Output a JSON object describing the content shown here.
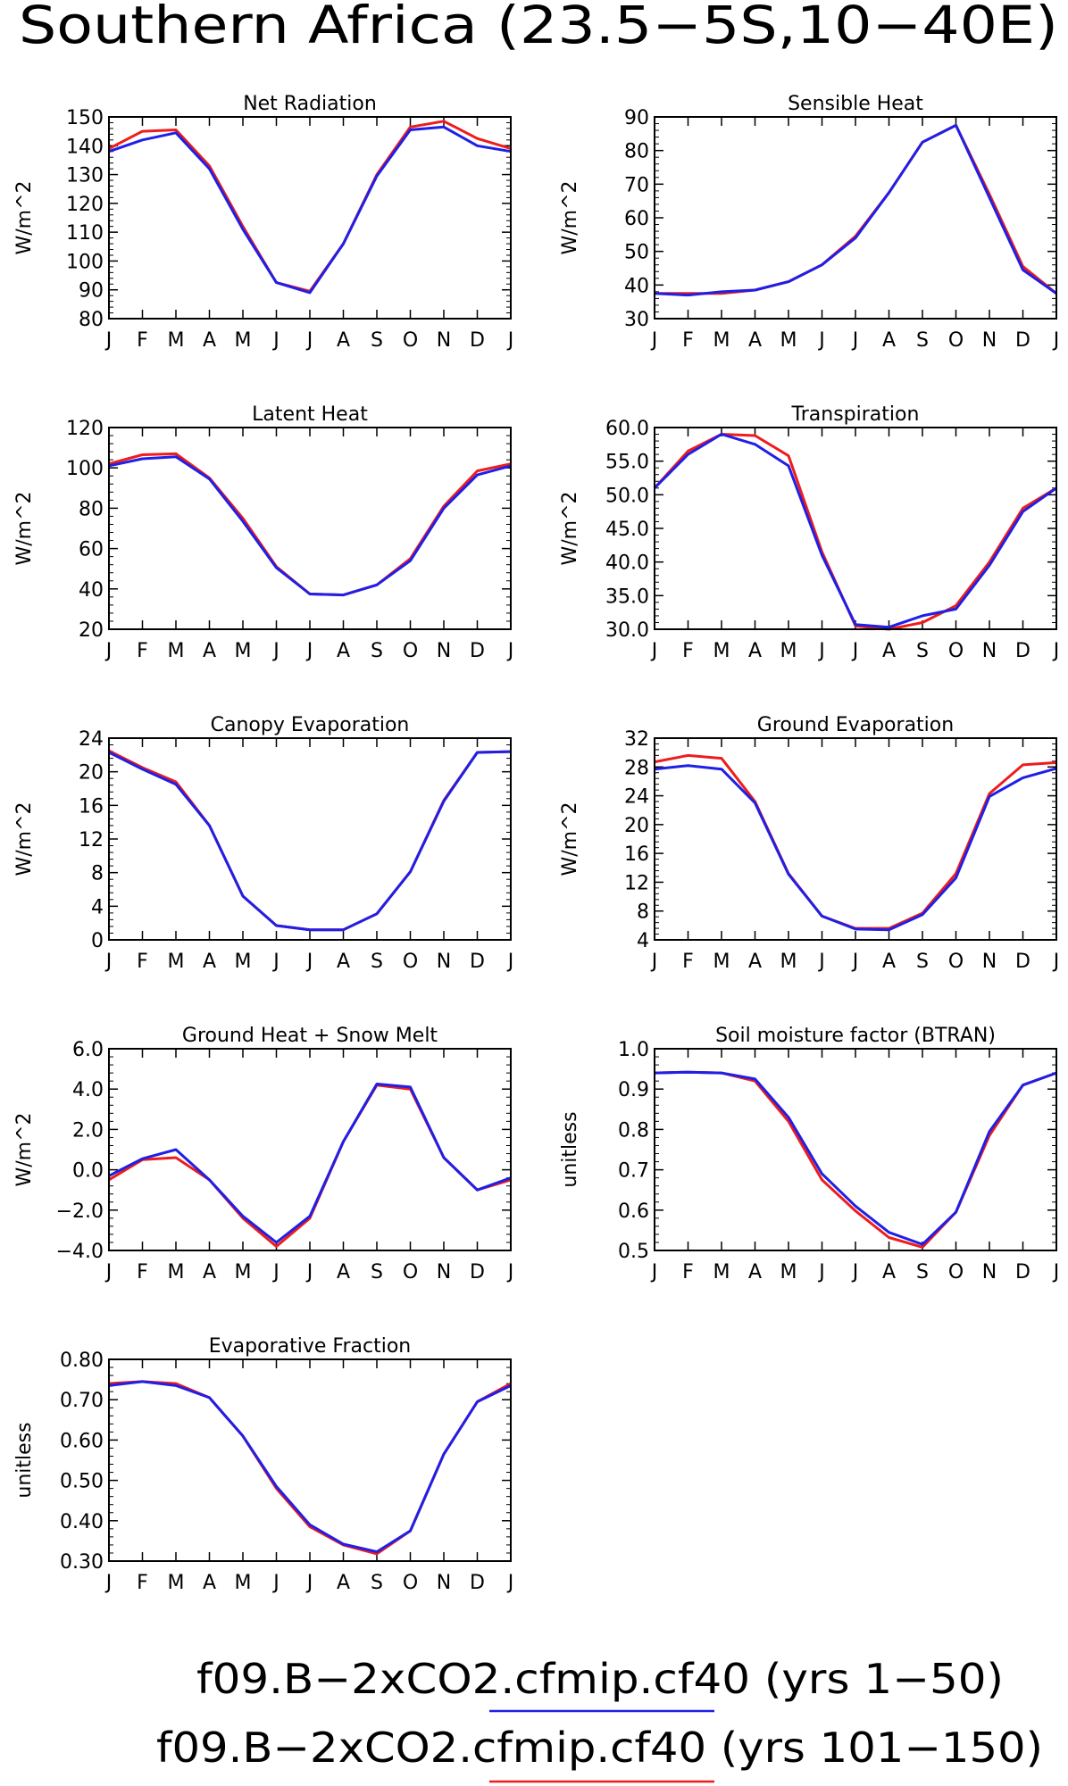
{
  "page": {
    "title": "Southern Africa (23.5−5S,10−40E)",
    "legend": [
      {
        "label": "f09.B−2xCO2.cfmip.cf40 (yrs 1−50)",
        "color": "#1f1fe6"
      },
      {
        "label": "f09.B−2xCO2.cfmip.cf40 (yrs 101−150)",
        "color": "#ee1c1c"
      }
    ]
  },
  "colors": {
    "blue": "#1f1fe6",
    "red": "#ee1c1c"
  },
  "chart_data": [
    {
      "type": "line",
      "title": "Net Radiation",
      "ylabel": "W/m^2",
      "categories": [
        "J",
        "F",
        "M",
        "A",
        "M",
        "J",
        "J",
        "A",
        "S",
        "O",
        "N",
        "D",
        "J"
      ],
      "ylim": [
        80,
        150
      ],
      "yticks": [
        80,
        90,
        100,
        110,
        120,
        130,
        140,
        150
      ],
      "ytick_labels": [
        "80",
        "90",
        "100",
        "110",
        "120",
        "130",
        "140",
        "150"
      ],
      "series": [
        {
          "color": "red",
          "values": [
            139,
            145,
            145.5,
            133,
            112,
            92.5,
            89.5,
            106,
            130,
            146.5,
            148.5,
            142.5,
            139
          ]
        },
        {
          "color": "blue",
          "values": [
            138,
            142,
            144.5,
            132,
            111,
            92.5,
            89,
            106,
            129.5,
            145.5,
            146.5,
            140,
            138
          ]
        }
      ]
    },
    {
      "type": "line",
      "title": "Sensible Heat",
      "ylabel": "W/m^2",
      "categories": [
        "J",
        "F",
        "M",
        "A",
        "M",
        "J",
        "J",
        "A",
        "S",
        "O",
        "N",
        "D",
        "J"
      ],
      "ylim": [
        30,
        90
      ],
      "yticks": [
        30,
        40,
        50,
        60,
        70,
        80,
        90
      ],
      "ytick_labels": [
        "30",
        "40",
        "50",
        "60",
        "70",
        "80",
        "90"
      ],
      "series": [
        {
          "color": "red",
          "values": [
            37.5,
            37.5,
            37.5,
            38.5,
            41,
            46,
            54.5,
            67.5,
            82.5,
            87.5,
            67,
            45.5,
            37.5
          ]
        },
        {
          "color": "blue",
          "values": [
            37.5,
            37,
            38,
            38.5,
            41,
            46,
            54,
            67.5,
            82.5,
            87.5,
            66,
            44.5,
            37.5
          ]
        }
      ]
    },
    {
      "type": "line",
      "title": "Latent Heat",
      "ylabel": "W/m^2",
      "categories": [
        "J",
        "F",
        "M",
        "A",
        "M",
        "J",
        "J",
        "A",
        "S",
        "O",
        "N",
        "D",
        "J"
      ],
      "ylim": [
        20,
        120
      ],
      "yticks": [
        20,
        40,
        60,
        80,
        100,
        120
      ],
      "ytick_labels": [
        "20",
        "40",
        "60",
        "80",
        "100",
        "120"
      ],
      "series": [
        {
          "color": "red",
          "values": [
            102,
            106.5,
            107,
            95,
            75,
            51,
            37.5,
            37,
            42,
            55,
            81,
            98.5,
            102
          ]
        },
        {
          "color": "blue",
          "values": [
            101,
            104.5,
            105.5,
            94.5,
            73.5,
            50.5,
            37.5,
            37,
            42,
            54,
            80,
            96.5,
            101
          ]
        }
      ]
    },
    {
      "type": "line",
      "title": "Transpiration",
      "ylabel": "W/m^2",
      "categories": [
        "J",
        "F",
        "M",
        "A",
        "M",
        "J",
        "J",
        "A",
        "S",
        "O",
        "N",
        "D",
        "J"
      ],
      "ylim": [
        30,
        60
      ],
      "yticks": [
        30,
        35,
        40,
        45,
        50,
        55,
        60
      ],
      "ytick_labels": [
        "30.0",
        "35.0",
        "40.0",
        "45.0",
        "50.0",
        "55.0",
        "60.0"
      ],
      "series": [
        {
          "color": "red",
          "values": [
            51,
            56.5,
            59,
            58.8,
            55.8,
            41.5,
            30.5,
            30,
            31,
            33.5,
            40,
            48,
            51
          ]
        },
        {
          "color": "blue",
          "values": [
            51,
            56,
            59,
            57.5,
            54.3,
            41,
            30.7,
            30.3,
            32,
            33,
            39.5,
            47.5,
            51
          ]
        }
      ]
    },
    {
      "type": "line",
      "title": "Canopy Evaporation",
      "ylabel": "W/m^2",
      "categories": [
        "J",
        "F",
        "M",
        "A",
        "M",
        "J",
        "J",
        "A",
        "S",
        "O",
        "N",
        "D",
        "J"
      ],
      "ylim": [
        0,
        24
      ],
      "yticks": [
        0,
        4,
        8,
        12,
        16,
        20,
        24
      ],
      "ytick_labels": [
        "0",
        "4",
        "8",
        "12",
        "16",
        "20",
        "24"
      ],
      "series": [
        {
          "color": "red",
          "values": [
            22.5,
            20.5,
            18.8,
            13.6,
            5.2,
            1.7,
            1.2,
            1.2,
            3.1,
            8.1,
            16.6,
            22.3,
            22.4
          ]
        },
        {
          "color": "blue",
          "values": [
            22.3,
            20.3,
            18.5,
            13.6,
            5.2,
            1.7,
            1.2,
            1.2,
            3.1,
            8.1,
            16.5,
            22.3,
            22.4
          ]
        }
      ]
    },
    {
      "type": "line",
      "title": "Ground Evaporation",
      "ylabel": "W/m^2",
      "categories": [
        "J",
        "F",
        "M",
        "A",
        "M",
        "J",
        "J",
        "A",
        "S",
        "O",
        "N",
        "D",
        "J"
      ],
      "ylim": [
        4,
        32
      ],
      "yticks": [
        4,
        8,
        12,
        16,
        20,
        24,
        28,
        32
      ],
      "ytick_labels": [
        "4",
        "8",
        "12",
        "16",
        "20",
        "24",
        "28",
        "32"
      ],
      "series": [
        {
          "color": "red",
          "values": [
            28.7,
            29.6,
            29.2,
            23.2,
            13.2,
            7.3,
            5.6,
            5.6,
            7.7,
            13.2,
            24.3,
            28.3,
            28.6
          ]
        },
        {
          "color": "blue",
          "values": [
            27.7,
            28.2,
            27.7,
            23,
            13.1,
            7.3,
            5.5,
            5.4,
            7.5,
            12.6,
            23.9,
            26.5,
            27.8
          ]
        }
      ]
    },
    {
      "type": "line",
      "title": "Ground Heat + Snow Melt",
      "ylabel": "W/m^2",
      "categories": [
        "J",
        "F",
        "M",
        "A",
        "M",
        "J",
        "J",
        "A",
        "S",
        "O",
        "N",
        "D",
        "J"
      ],
      "ylim": [
        -4,
        6
      ],
      "yticks": [
        -4,
        -2,
        0,
        2,
        4,
        6
      ],
      "ytick_labels": [
        "−4.0",
        "−2.0",
        "0.0",
        "2.0",
        "4.0",
        "6.0"
      ],
      "series": [
        {
          "color": "red",
          "values": [
            -0.5,
            0.5,
            0.6,
            -0.5,
            -2.4,
            -3.8,
            -2.4,
            1.4,
            4.2,
            4.0,
            0.6,
            -1.0,
            -0.5
          ]
        },
        {
          "color": "blue",
          "values": [
            -0.3,
            0.55,
            1.0,
            -0.5,
            -2.3,
            -3.6,
            -2.3,
            1.4,
            4.25,
            4.1,
            0.6,
            -1.0,
            -0.4
          ]
        }
      ]
    },
    {
      "type": "line",
      "title": "Soil moisture factor (BTRAN)",
      "ylabel": "unitless",
      "categories": [
        "J",
        "F",
        "M",
        "A",
        "M",
        "J",
        "J",
        "A",
        "S",
        "O",
        "N",
        "D",
        "J"
      ],
      "ylim": [
        0.5,
        1.0
      ],
      "yticks": [
        0.5,
        0.6,
        0.7,
        0.8,
        0.9,
        1.0
      ],
      "ytick_labels": [
        "0.5",
        "0.6",
        "0.7",
        "0.8",
        "0.9",
        "1.0"
      ],
      "series": [
        {
          "color": "red",
          "values": [
            0.94,
            0.942,
            0.94,
            0.92,
            0.82,
            0.675,
            0.598,
            0.532,
            0.508,
            0.595,
            0.785,
            0.91,
            0.94
          ]
        },
        {
          "color": "blue",
          "values": [
            0.94,
            0.942,
            0.94,
            0.925,
            0.83,
            0.69,
            0.61,
            0.545,
            0.515,
            0.595,
            0.795,
            0.91,
            0.94
          ]
        }
      ]
    },
    {
      "type": "line",
      "title": "Evaporative Fraction",
      "ylabel": "unitless",
      "categories": [
        "J",
        "F",
        "M",
        "A",
        "M",
        "J",
        "J",
        "A",
        "S",
        "O",
        "N",
        "D",
        "J"
      ],
      "ylim": [
        0.3,
        0.8
      ],
      "yticks": [
        0.3,
        0.4,
        0.5,
        0.6,
        0.7,
        0.8
      ],
      "ytick_labels": [
        "0.30",
        "0.40",
        "0.50",
        "0.60",
        "0.70",
        "0.80"
      ],
      "series": [
        {
          "color": "red",
          "values": [
            0.74,
            0.745,
            0.74,
            0.705,
            0.61,
            0.48,
            0.385,
            0.34,
            0.318,
            0.375,
            0.565,
            0.695,
            0.74
          ]
        },
        {
          "color": "blue",
          "values": [
            0.735,
            0.745,
            0.735,
            0.705,
            0.61,
            0.485,
            0.39,
            0.342,
            0.323,
            0.375,
            0.565,
            0.695,
            0.735
          ]
        }
      ]
    }
  ]
}
